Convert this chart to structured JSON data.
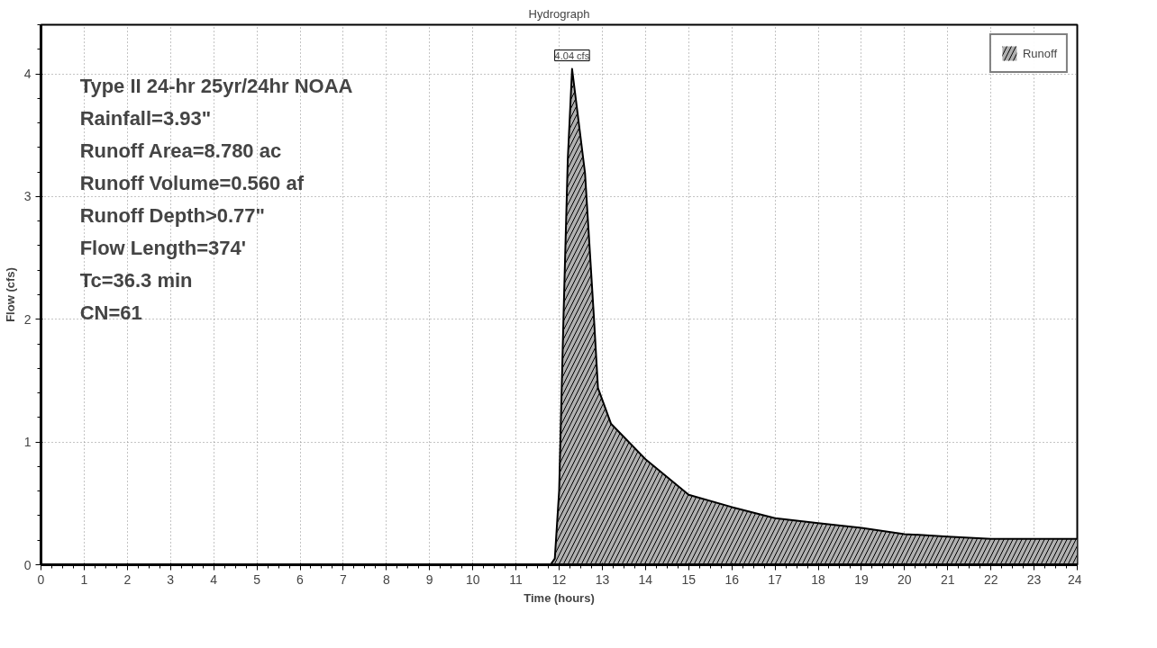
{
  "chart_data": {
    "type": "area",
    "title": "Hydrograph",
    "xlabel": "Time (hours)",
    "ylabel": "Flow (cfs)",
    "x": [
      0,
      11.8,
      11.9,
      12.0,
      12.1,
      12.2,
      12.3,
      12.6,
      12.8,
      12.9,
      13.2,
      14.0,
      15.0,
      16.0,
      17.0,
      18.0,
      19.0,
      20.0,
      21.0,
      22.0,
      23.0,
      24.0
    ],
    "series": [
      {
        "name": "Runoff",
        "color": "#b0b0b0",
        "values": [
          0,
          0,
          0.05,
          0.6,
          2.0,
          3.3,
          4.04,
          3.19,
          2.05,
          1.44,
          1.15,
          0.86,
          0.57,
          0.47,
          0.38,
          0.34,
          0.3,
          0.25,
          0.23,
          0.21,
          0.21,
          0.21
        ]
      }
    ],
    "annotations": [
      {
        "text": "4.04 cfs",
        "x": 12.3,
        "y": 4.04
      },
      "Type II 24-hr 25yr/24hr NOAA",
      "Rainfall=3.93\"",
      "Runoff Area=8.780 ac",
      "Runoff Volume=0.560 af",
      "Runoff Depth>0.77\"",
      "Flow Length=374'",
      "Tc=36.3 min",
      "CN=61"
    ],
    "xlim": [
      0,
      24
    ],
    "ylim": [
      0,
      4.4
    ],
    "xticks": [
      0,
      1,
      2,
      3,
      4,
      5,
      6,
      7,
      8,
      9,
      10,
      11,
      12,
      13,
      14,
      15,
      16,
      17,
      18,
      19,
      20,
      21,
      22,
      23,
      24
    ],
    "yticks": [
      0,
      1,
      2,
      3,
      4
    ],
    "grid": true,
    "legend": "top right"
  }
}
